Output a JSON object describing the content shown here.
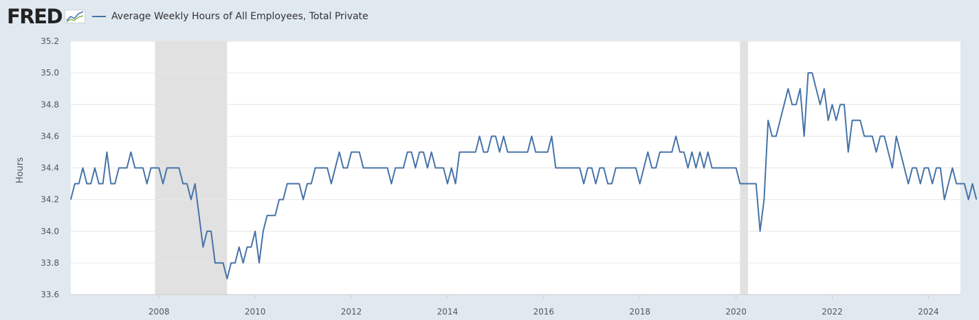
{
  "brand": {
    "logo_text": "FRED"
  },
  "colors": {
    "series": "#4572a7",
    "recession": "#e1e1e1",
    "background": "#e1e9f0",
    "plot": "#ffffff"
  },
  "chart_data": {
    "type": "line",
    "ylabel": "Hours",
    "ylim": [
      33.6,
      35.2
    ],
    "yticks": [
      "33.6",
      "33.8",
      "34.0",
      "34.2",
      "34.4",
      "34.6",
      "34.8",
      "35.0",
      "35.2"
    ],
    "xticks": [
      "2008",
      "2010",
      "2012",
      "2014",
      "2016",
      "2018",
      "2020",
      "2022",
      "2024"
    ],
    "x_start": "2006-03",
    "x_end": "2024-09",
    "grid": true,
    "legend_position": "top-left",
    "recessions": [
      {
        "start": "2007-12",
        "end": "2009-06"
      },
      {
        "start": "2020-02",
        "end": "2020-04"
      }
    ],
    "series": [
      {
        "name": "Average Weekly Hours of All Employees, Total Private",
        "frequency": "monthly",
        "start": "2006-03",
        "values": [
          34.2,
          34.3,
          34.3,
          34.4,
          34.3,
          34.3,
          34.4,
          34.3,
          34.3,
          34.5,
          34.3,
          34.3,
          34.4,
          34.4,
          34.4,
          34.5,
          34.4,
          34.4,
          34.4,
          34.3,
          34.4,
          34.4,
          34.4,
          34.3,
          34.4,
          34.4,
          34.4,
          34.4,
          34.3,
          34.3,
          34.2,
          34.3,
          34.1,
          33.9,
          34.0,
          34.0,
          33.8,
          33.8,
          33.8,
          33.7,
          33.8,
          33.8,
          33.9,
          33.8,
          33.9,
          33.9,
          34.0,
          33.8,
          34.0,
          34.1,
          34.1,
          34.1,
          34.2,
          34.2,
          34.3,
          34.3,
          34.3,
          34.3,
          34.2,
          34.3,
          34.3,
          34.4,
          34.4,
          34.4,
          34.4,
          34.3,
          34.4,
          34.5,
          34.4,
          34.4,
          34.5,
          34.5,
          34.5,
          34.4,
          34.4,
          34.4,
          34.4,
          34.4,
          34.4,
          34.4,
          34.3,
          34.4,
          34.4,
          34.4,
          34.5,
          34.5,
          34.4,
          34.5,
          34.5,
          34.4,
          34.5,
          34.4,
          34.4,
          34.4,
          34.3,
          34.4,
          34.3,
          34.5,
          34.5,
          34.5,
          34.5,
          34.5,
          34.6,
          34.5,
          34.5,
          34.6,
          34.6,
          34.5,
          34.6,
          34.5,
          34.5,
          34.5,
          34.5,
          34.5,
          34.5,
          34.6,
          34.5,
          34.5,
          34.5,
          34.5,
          34.6,
          34.4,
          34.4,
          34.4,
          34.4,
          34.4,
          34.4,
          34.4,
          34.3,
          34.4,
          34.4,
          34.3,
          34.4,
          34.4,
          34.3,
          34.3,
          34.4,
          34.4,
          34.4,
          34.4,
          34.4,
          34.4,
          34.3,
          34.4,
          34.5,
          34.4,
          34.4,
          34.5,
          34.5,
          34.5,
          34.5,
          34.6,
          34.5,
          34.5,
          34.4,
          34.5,
          34.4,
          34.5,
          34.4,
          34.5,
          34.4,
          34.4,
          34.4,
          34.4,
          34.4,
          34.4,
          34.4,
          34.3,
          34.3,
          34.3,
          34.3,
          34.3,
          34.0,
          34.2,
          34.7,
          34.6,
          34.6,
          34.7,
          34.8,
          34.9,
          34.8,
          34.8,
          34.9,
          34.6,
          35.0,
          35.0,
          34.9,
          34.8,
          34.9,
          34.7,
          34.8,
          34.7,
          34.8,
          34.8,
          34.5,
          34.7,
          34.7,
          34.7,
          34.6,
          34.6,
          34.6,
          34.5,
          34.6,
          34.6,
          34.5,
          34.4,
          34.6,
          34.5,
          34.4,
          34.3,
          34.4,
          34.4,
          34.3,
          34.4,
          34.4,
          34.3,
          34.4,
          34.4,
          34.2,
          34.3,
          34.4,
          34.3,
          34.3,
          34.3,
          34.2,
          34.3,
          34.2
        ]
      }
    ]
  }
}
